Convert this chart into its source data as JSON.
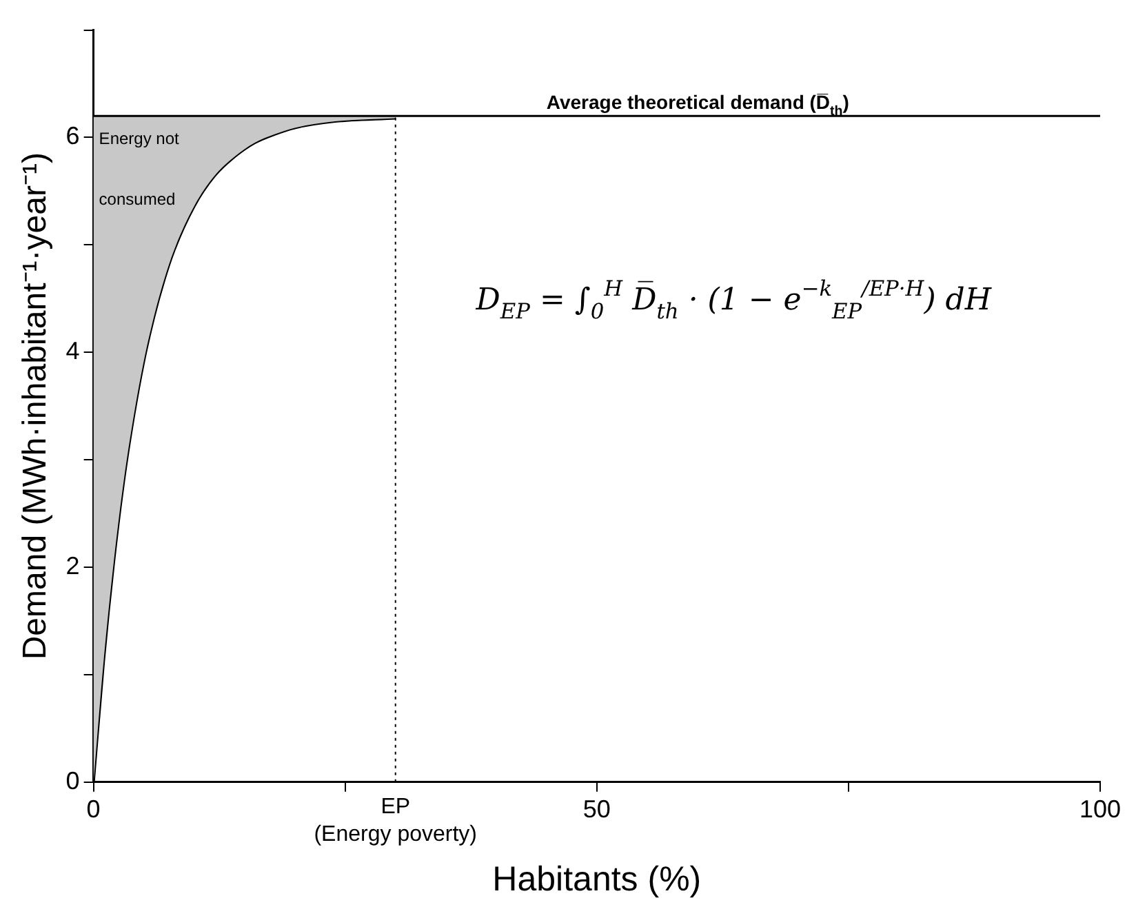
{
  "chart_data": {
    "type": "line",
    "xlabel": "Habitants (%)",
    "ylabel": "Demand (MWh·inhabitant⁻¹·year⁻¹)",
    "x": [
      0,
      1,
      2,
      3,
      4,
      5,
      6,
      7,
      8,
      10,
      12,
      14,
      16,
      18,
      20,
      24,
      30
    ],
    "series": [
      {
        "color": "#000000",
        "values": [
          0,
          1.12,
          2.04,
          2.8,
          3.41,
          3.92,
          4.33,
          4.67,
          4.95,
          5.36,
          5.64,
          5.82,
          5.95,
          6.03,
          6.09,
          6.15,
          6.18
        ],
        "lower": [
          0,
          1.12,
          2.04,
          2.8,
          3.41,
          3.92,
          4.33,
          4.67,
          4.95,
          5.36,
          5.64,
          5.82,
          5.95,
          6.03,
          6.09,
          6.15,
          6.18
        ],
        "upper": [
          6.2,
          6.2,
          6.2,
          6.2,
          6.2,
          6.2,
          6.2,
          6.2,
          6.2,
          6.2,
          6.2,
          6.2,
          6.2,
          6.2,
          6.2,
          6.2,
          6.2
        ]
      }
    ],
    "xlim": [
      0,
      100
    ],
    "xticks": [
      0,
      {
        "value": 25,
        "label": null
      },
      50,
      {
        "value": 75,
        "label": null
      },
      100
    ],
    "ylim": [
      0,
      7
    ],
    "yticks": [
      0,
      {
        "value": 1,
        "label": null
      },
      2,
      {
        "value": 3,
        "label": null
      },
      4,
      {
        "value": 5,
        "label": null
      },
      6,
      {
        "value": 7,
        "label": null
      }
    ],
    "ref_lines": [
      {
        "axis": "y",
        "value": 6.2,
        "label": "Average theoretical demand (D̅$_{th}$)",
        "color": "#000000",
        "line_style": "solid"
      },
      {
        "axis": "x",
        "value": 30,
        "label": "EP\n(Energy poverty)",
        "color": "#000000",
        "line_style": "dotted"
      }
    ],
    "annotations": [
      "Energy not\n\nconsumed",
      "D$_{EP}$ = ∫$_{0}$$^{H}$ D̅$_{th}$ · (1 − e$^{−k}$$_{EP}$$^{/EP·H}$) dH"
    ],
    "grid": false,
    "legend": false,
    "marker": "none",
    "line_style": "solid"
  }
}
